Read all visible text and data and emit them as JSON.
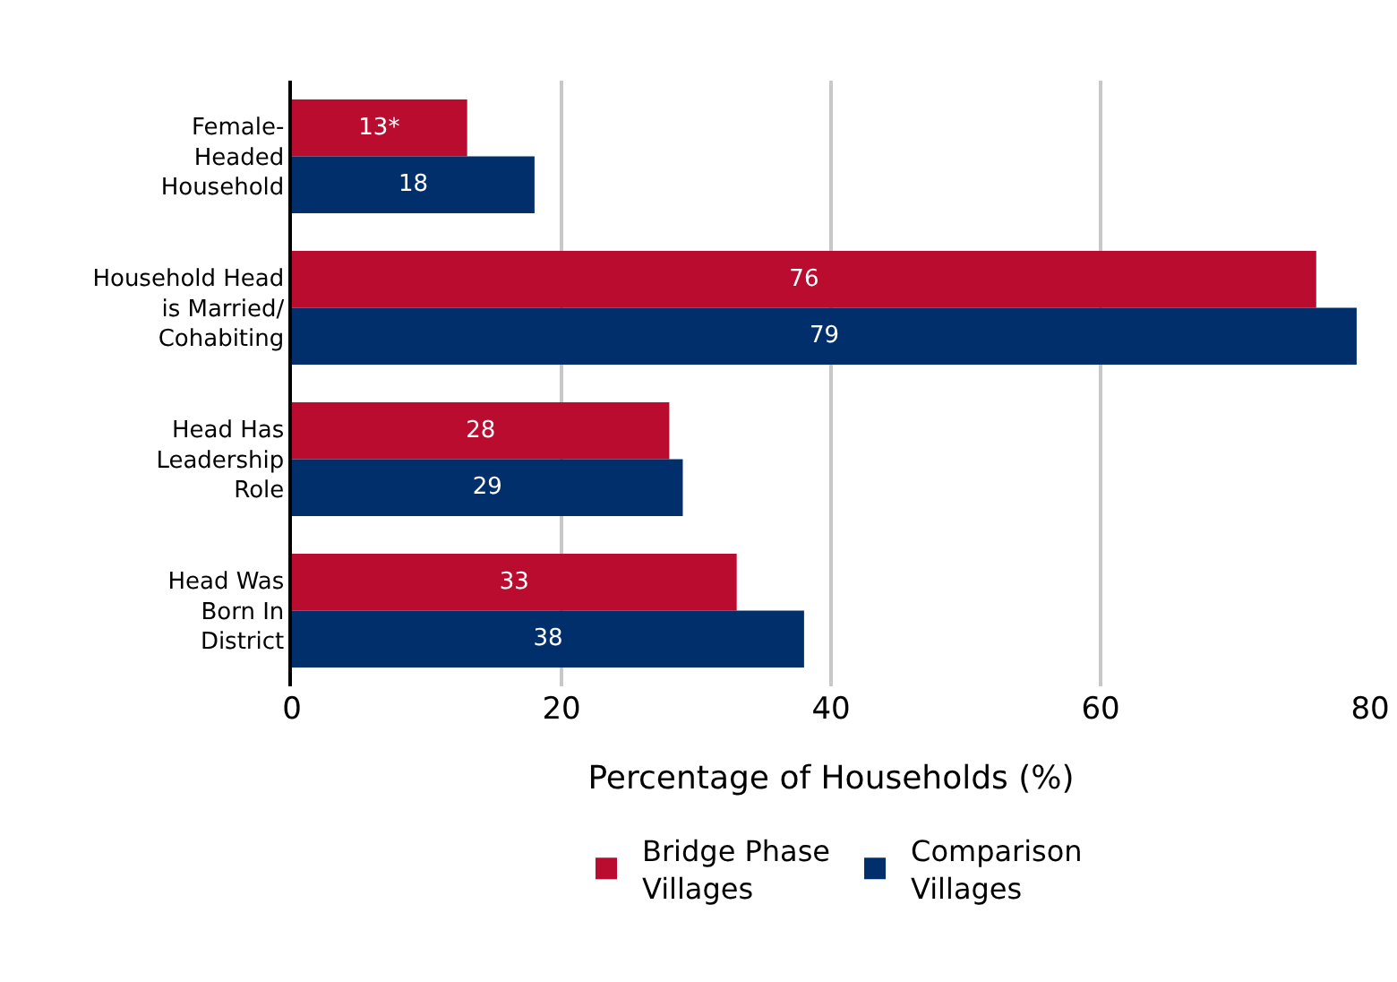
{
  "chart_data": {
    "type": "bar",
    "orientation": "horizontal",
    "xlabel": "Percentage of Households (%)",
    "categories": [
      "Female-\nHeaded\nHousehold",
      "Household Head\nis Married/\nCohabiting",
      "Head Has\nLeadership\nRole",
      "Head Was\nBorn In\nDistrict"
    ],
    "series": [
      {
        "name": "Bridge Phase\nVillages",
        "color": "#ba0c2f",
        "values": [
          13,
          76,
          28,
          33
        ],
        "value_labels": [
          "13*",
          "76",
          "28",
          "33"
        ]
      },
      {
        "name": "Comparison\nVillages",
        "color": "#002f6c",
        "values": [
          18,
          79,
          29,
          38
        ],
        "value_labels": [
          "18",
          "79",
          "29",
          "38"
        ]
      }
    ],
    "xlim": [
      0,
      80
    ],
    "xticks": [
      0,
      20,
      40,
      60,
      80
    ],
    "grid": "x",
    "legend": "bottom"
  }
}
